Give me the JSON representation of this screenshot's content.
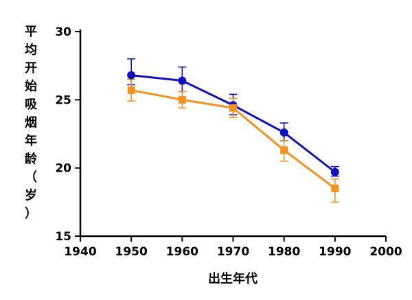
{
  "chart_data": {
    "type": "line",
    "xlabel": "出生年代",
    "ylabel": "平均开始吸烟年龄（岁）",
    "xlim": [
      1940,
      2000
    ],
    "ylim": [
      15,
      30
    ],
    "xticks": [
      1940,
      1950,
      1960,
      1970,
      1980,
      1990,
      2000
    ],
    "yticks": [
      15,
      20,
      25,
      30
    ],
    "x": [
      1950,
      1960,
      1970,
      1980,
      1990
    ],
    "grid": false,
    "legend": "none",
    "series": [
      {
        "color": "#1010c0",
        "marker": "circle",
        "values": [
          26.8,
          26.4,
          24.6,
          22.6,
          19.7
        ],
        "err_low": [
          0.7,
          0.8,
          0.7,
          0.6,
          0.3
        ],
        "err_high": [
          1.2,
          1.0,
          0.8,
          0.7,
          0.4
        ]
      },
      {
        "color": "#f5921e",
        "marker": "square",
        "values": [
          25.7,
          25.0,
          24.4,
          21.3,
          18.5
        ],
        "err_low": [
          0.8,
          0.6,
          0.7,
          0.8,
          1.0
        ],
        "err_high": [
          0.8,
          0.6,
          0.7,
          0.7,
          0.7
        ]
      }
    ]
  }
}
